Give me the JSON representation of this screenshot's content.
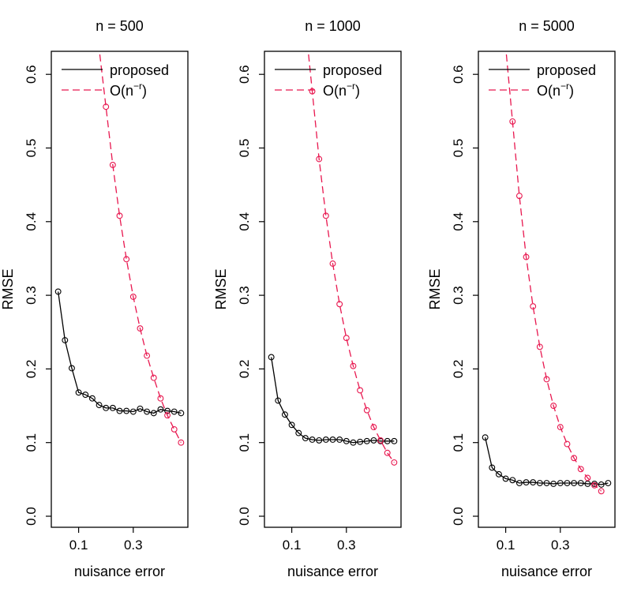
{
  "chart_data": [
    {
      "type": "line",
      "title": "n = 500",
      "xlabel": "nuisance error",
      "ylabel": "RMSE",
      "xlim": [
        0.0,
        0.5
      ],
      "ylim": [
        0.0,
        0.6
      ],
      "xticks": [
        0.1,
        0.3
      ],
      "xtick_labels": [
        "0.1",
        "0.3"
      ],
      "yticks": [
        0.0,
        0.1,
        0.2,
        0.3,
        0.4,
        0.5,
        0.6
      ],
      "ytick_labels": [
        "0.0",
        "0.1",
        "0.2",
        "0.3",
        "0.4",
        "0.5",
        "0.6"
      ],
      "legend": {
        "position": "top-left",
        "entries": [
          {
            "label": "proposed",
            "style": "solid",
            "color": "#000000"
          },
          {
            "label": "O(n",
            "sup": "−r",
            "suffix": ")",
            "style": "dashed",
            "color": "#e8174f"
          }
        ]
      },
      "x": [
        0.025,
        0.05,
        0.075,
        0.1,
        0.125,
        0.15,
        0.175,
        0.2,
        0.225,
        0.25,
        0.275,
        0.3,
        0.325,
        0.35,
        0.375,
        0.4,
        0.425,
        0.45,
        0.475
      ],
      "series": [
        {
          "name": "proposed",
          "color": "#000000",
          "style": "solid",
          "values": [
            0.305,
            0.239,
            0.201,
            0.168,
            0.165,
            0.16,
            0.151,
            0.147,
            0.147,
            0.143,
            0.143,
            0.142,
            0.146,
            0.142,
            0.14,
            0.145,
            0.143,
            0.142,
            0.14
          ]
        },
        {
          "name": "O(n^-r)",
          "color": "#e8174f",
          "style": "dashed",
          "values": [
            null,
            null,
            null,
            null,
            null,
            null,
            null,
            0.556,
            0.477,
            0.408,
            0.349,
            0.298,
            0.255,
            0.218,
            0.188,
            0.16,
            0.137,
            0.118,
            0.1
          ]
        }
      ]
    },
    {
      "type": "line",
      "title": "n = 1000",
      "xlabel": "nuisance error",
      "ylabel": "RMSE",
      "xlim": [
        0.0,
        0.5
      ],
      "ylim": [
        0.0,
        0.6
      ],
      "xticks": [
        0.1,
        0.3
      ],
      "xtick_labels": [
        "0.1",
        "0.3"
      ],
      "yticks": [
        0.0,
        0.1,
        0.2,
        0.3,
        0.4,
        0.5,
        0.6
      ],
      "ytick_labels": [
        "0.0",
        "0.1",
        "0.2",
        "0.3",
        "0.4",
        "0.5",
        "0.6"
      ],
      "legend": {
        "position": "top-left",
        "entries": [
          {
            "label": "proposed",
            "style": "solid",
            "color": "#000000"
          },
          {
            "label": "O(n",
            "sup": "−r",
            "suffix": ")",
            "style": "dashed",
            "color": "#e8174f"
          }
        ]
      },
      "x": [
        0.025,
        0.05,
        0.075,
        0.1,
        0.125,
        0.15,
        0.175,
        0.2,
        0.225,
        0.25,
        0.275,
        0.3,
        0.325,
        0.35,
        0.375,
        0.4,
        0.425,
        0.45,
        0.475
      ],
      "series": [
        {
          "name": "proposed",
          "color": "#000000",
          "style": "solid",
          "values": [
            0.216,
            0.157,
            0.138,
            0.124,
            0.113,
            0.106,
            0.104,
            0.103,
            0.104,
            0.104,
            0.104,
            0.102,
            0.1,
            0.101,
            0.102,
            0.103,
            0.102,
            0.102,
            0.102
          ]
        },
        {
          "name": "O(n^-r)",
          "color": "#e8174f",
          "style": "dashed",
          "values": [
            null,
            null,
            null,
            null,
            null,
            null,
            0.577,
            0.485,
            0.408,
            0.343,
            0.288,
            0.242,
            0.204,
            0.171,
            0.144,
            0.121,
            0.103,
            0.086,
            0.073
          ]
        }
      ]
    },
    {
      "type": "line",
      "title": "n = 5000",
      "xlabel": "nuisance error",
      "ylabel": "RMSE",
      "xlim": [
        0.0,
        0.5
      ],
      "ylim": [
        0.0,
        0.6
      ],
      "xticks": [
        0.1,
        0.3
      ],
      "xtick_labels": [
        "0.1",
        "0.3"
      ],
      "yticks": [
        0.0,
        0.1,
        0.2,
        0.3,
        0.4,
        0.5,
        0.6
      ],
      "ytick_labels": [
        "0.0",
        "0.1",
        "0.2",
        "0.3",
        "0.4",
        "0.5",
        "0.6"
      ],
      "legend": {
        "position": "top-left",
        "entries": [
          {
            "label": "proposed",
            "style": "solid",
            "color": "#000000"
          },
          {
            "label": "O(n",
            "sup": "−r",
            "suffix": ")",
            "style": "dashed",
            "color": "#e8174f"
          }
        ]
      },
      "x": [
        0.025,
        0.05,
        0.075,
        0.1,
        0.125,
        0.15,
        0.175,
        0.2,
        0.225,
        0.25,
        0.275,
        0.3,
        0.325,
        0.35,
        0.375,
        0.4,
        0.425,
        0.45,
        0.475
      ],
      "series": [
        {
          "name": "proposed",
          "color": "#000000",
          "style": "solid",
          "values": [
            0.107,
            0.066,
            0.057,
            0.051,
            0.049,
            0.045,
            0.046,
            0.046,
            0.045,
            0.045,
            0.044,
            0.045,
            0.045,
            0.045,
            0.045,
            0.044,
            0.044,
            0.043,
            0.045
          ]
        },
        {
          "name": "O(n^-r)",
          "color": "#e8174f",
          "style": "dashed",
          "values": [
            null,
            null,
            null,
            null,
            0.536,
            0.435,
            0.352,
            0.285,
            0.23,
            0.186,
            0.15,
            0.121,
            0.098,
            0.079,
            0.064,
            0.052,
            0.042,
            0.034,
            null
          ]
        }
      ]
    }
  ]
}
